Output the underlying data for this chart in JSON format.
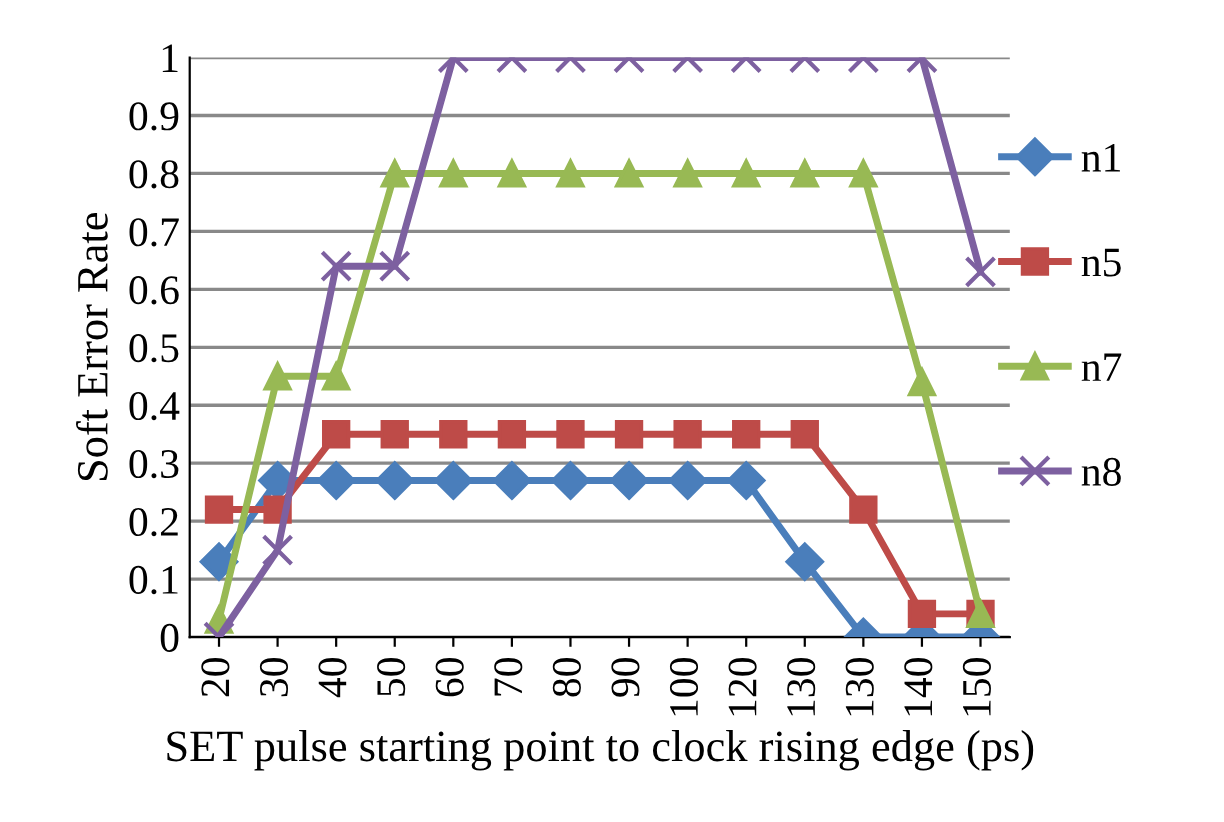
{
  "chart_data": {
    "type": "line",
    "xlabel": "SET pulse starting point to clock rising edge (ps)",
    "ylabel": "Soft Error Rate",
    "categories": [
      "20",
      "30",
      "40",
      "50",
      "60",
      "70",
      "80",
      "90",
      "100",
      "120",
      "130",
      "130",
      "140",
      "150"
    ],
    "series": [
      {
        "name": "n1",
        "color": "#4a7ebb",
        "marker": "diamond",
        "values": [
          0.13,
          0.27,
          0.27,
          0.27,
          0.27,
          0.27,
          0.27,
          0.27,
          0.27,
          0.27,
          0.13,
          0,
          0,
          0
        ]
      },
      {
        "name": "n5",
        "color": "#be4b48",
        "marker": "square",
        "values": [
          0.22,
          0.22,
          0.35,
          0.35,
          0.35,
          0.35,
          0.35,
          0.35,
          0.35,
          0.35,
          0.35,
          0.22,
          0.04,
          0.04
        ]
      },
      {
        "name": "n7",
        "color": "#98b954",
        "marker": "triangle",
        "values": [
          0.03,
          0.45,
          0.45,
          0.8,
          0.8,
          0.8,
          0.8,
          0.8,
          0.8,
          0.8,
          0.8,
          0.8,
          0.44,
          0.04
        ]
      },
      {
        "name": "n8",
        "color": "#7d60a0",
        "marker": "cross",
        "values": [
          0,
          0.15,
          0.64,
          0.64,
          1,
          1,
          1,
          1,
          1,
          1,
          1,
          1,
          1,
          0.63
        ]
      }
    ],
    "ylim": [
      0,
      1
    ],
    "yticks": [
      0,
      0.1,
      0.2,
      0.3,
      0.4,
      0.5,
      0.6,
      0.7,
      0.8,
      0.9,
      1
    ],
    "grid": "y",
    "legend": "right"
  }
}
